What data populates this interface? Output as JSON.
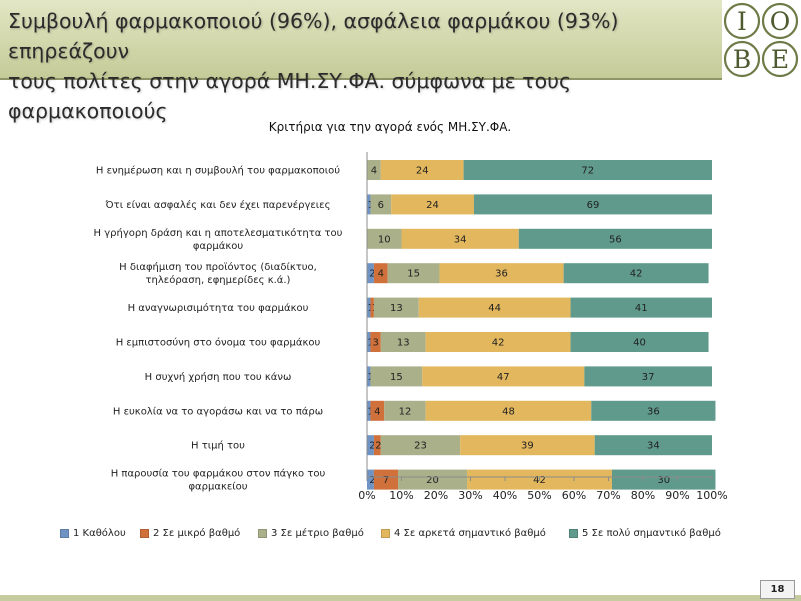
{
  "header": {
    "title_line1": "Συμβουλή φαρμακοποιού (96%), ασφάλεια φαρμάκου (93%) επηρεάζουν",
    "title_line2": "τους πολίτες στην αγορά  ΜΗ.ΣΥ.ΦΑ.  σύμφωνα με τους φαρμακοποιούς"
  },
  "logo": {
    "letters": [
      "Ι",
      "Ο",
      "Β",
      "Ε"
    ],
    "colors": {
      "ring": "#6e7b46",
      "letter": "#4e5a30"
    }
  },
  "chart_data": {
    "type": "bar",
    "orientation": "horizontal",
    "stacked": "percent",
    "title": "Κριτήρια για την αγορά ενός ΜΗ.ΣΥ.ΦΑ.",
    "categories": [
      "Η ενημέρωση και η συμβουλή του φαρμακοποιού",
      "Ότι είναι ασφαλές και δεν έχει παρενέργειες",
      "Η γρήγορη δράση  και η αποτελεσματικότητα του φαρμάκου",
      "Η διαφήμιση του προϊόντος (διαδίκτυο, τηλεόραση, εφημερίδες κ.ά.)",
      "Η αναγνωρισιμότητα του φαρμάκου",
      "Η εμπιστοσύνη στο όνομα του φαρμάκου",
      "Η συχνή χρήση που του κάνω",
      "Η ευκολία να το αγοράσω και να το πάρω",
      "Η τιμή του",
      "Η παρουσία του φαρμάκου στον πάγκο του φαρμακείου"
    ],
    "series": [
      {
        "name": "1 Καθόλου",
        "color": "#6f94c4",
        "values": [
          0,
          1,
          0,
          2,
          1,
          1,
          1,
          1,
          2,
          2
        ]
      },
      {
        "name": "2 Σε μικρό βαθμό",
        "color": "#d0703a",
        "values": [
          0,
          0,
          0,
          4,
          1,
          3,
          0,
          4,
          2,
          7
        ]
      },
      {
        "name": "3 Σε μέτριο βαθμό",
        "color": "#a9b08a",
        "values": [
          4,
          6,
          10,
          15,
          13,
          13,
          15,
          12,
          23,
          20
        ]
      },
      {
        "name": "4 Σε αρκετά σημαντικό βαθμό",
        "color": "#e2b75e",
        "values": [
          24,
          24,
          34,
          36,
          44,
          42,
          47,
          48,
          39,
          42
        ]
      },
      {
        "name": "5 Σε πολύ σημαντικό βαθμό",
        "color": "#5f9a8c",
        "values": [
          72,
          69,
          56,
          42,
          41,
          40,
          37,
          36,
          34,
          30
        ]
      }
    ],
    "data_labels": [
      [
        "",
        "",
        "4",
        "24",
        "72"
      ],
      [
        "1",
        "",
        "6",
        "24",
        "69"
      ],
      [
        "0",
        "",
        "10",
        "34",
        "56"
      ],
      [
        "2",
        "4",
        "15",
        "36",
        "42"
      ],
      [
        "1",
        "1",
        "13",
        "44",
        "41"
      ],
      [
        "1",
        "3",
        "13",
        "42",
        "40"
      ],
      [
        "1",
        "",
        "15",
        "47",
        "37"
      ],
      [
        "1",
        "4",
        "12",
        "48",
        "36"
      ],
      [
        "2",
        "2",
        "23",
        "39",
        "34"
      ],
      [
        "2",
        "7",
        "20",
        "42",
        "30"
      ]
    ],
    "x_ticks": [
      "0%",
      "10%",
      "20%",
      "30%",
      "40%",
      "50%",
      "60%",
      "70%",
      "80%",
      "90%",
      "100%"
    ],
    "xlim": [
      0,
      100
    ],
    "grid": false,
    "legend_position": "bottom"
  },
  "page_number": "18"
}
